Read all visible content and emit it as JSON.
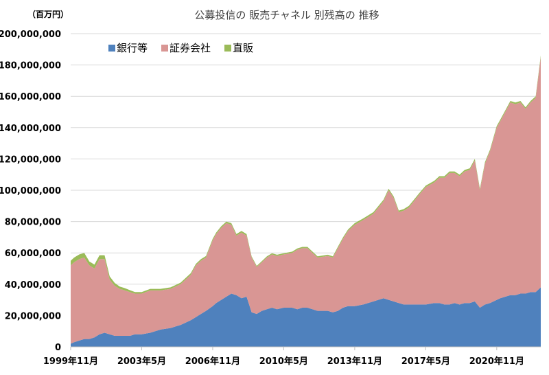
{
  "chart_data": {
    "type": "area",
    "stacked": true,
    "title": "公募投信の 販売チャネル 別残高の 推移",
    "unit_label": "（百万円）",
    "xlabel": "",
    "ylabel": "",
    "ylim": [
      0,
      200000000
    ],
    "y_ticks": [
      "0",
      "20,000,000",
      "40,000,000",
      "60,000,000",
      "80,000,000",
      "100,000,000",
      "120,000,000",
      "140,000,000",
      "160,000,000",
      "180,000,000",
      "200,000,000"
    ],
    "x_tick_labels": [
      "1999年11月",
      "2003年5月",
      "2006年11月",
      "2010年5月",
      "2013年11月",
      "2017年5月",
      "2020年11月"
    ],
    "x_tick_values": [
      1999.83,
      2003.33,
      2006.83,
      2010.33,
      2013.83,
      2017.33,
      2020.83
    ],
    "xlim": [
      1999.83,
      2023.0
    ],
    "grid": "horizontal",
    "legend_position": "top-left",
    "x": [
      1999.83,
      2000.0,
      2000.25,
      2000.5,
      2000.75,
      2001.0,
      2001.25,
      2001.5,
      2001.75,
      2002.0,
      2002.25,
      2002.5,
      2002.75,
      2003.0,
      2003.33,
      2003.75,
      2004.25,
      2004.75,
      2005.25,
      2005.75,
      2006.0,
      2006.25,
      2006.5,
      2006.83,
      2007.0,
      2007.25,
      2007.5,
      2007.75,
      2008.0,
      2008.25,
      2008.5,
      2008.75,
      2009.0,
      2009.25,
      2009.5,
      2009.75,
      2010.0,
      2010.33,
      2010.75,
      2011.0,
      2011.25,
      2011.5,
      2011.75,
      2012.0,
      2012.5,
      2012.75,
      2013.0,
      2013.25,
      2013.5,
      2013.83,
      2014.25,
      2014.75,
      2015.25,
      2015.5,
      2015.75,
      2016.0,
      2016.25,
      2016.5,
      2016.75,
      2017.0,
      2017.33,
      2017.75,
      2018.0,
      2018.25,
      2018.5,
      2018.75,
      2019.0,
      2019.25,
      2019.5,
      2019.75,
      2020.0,
      2020.25,
      2020.5,
      2020.83,
      2021.0,
      2021.25,
      2021.5,
      2021.75,
      2022.0,
      2022.25,
      2022.5,
      2022.75,
      2023.0
    ],
    "series": [
      {
        "name": "銀行等",
        "color": "#4f81bd",
        "values": [
          2000000,
          3000000,
          4000000,
          5000000,
          5000000,
          6000000,
          8000000,
          9000000,
          8000000,
          7000000,
          7000000,
          7000000,
          7000000,
          8000000,
          8000000,
          9000000,
          11000000,
          12000000,
          14000000,
          17000000,
          19000000,
          21000000,
          23000000,
          26000000,
          28000000,
          30000000,
          32000000,
          34000000,
          33000000,
          31000000,
          32000000,
          22000000,
          21000000,
          23000000,
          24000000,
          25000000,
          24000000,
          25000000,
          25000000,
          24000000,
          25000000,
          25000000,
          24000000,
          23000000,
          23000000,
          22000000,
          23000000,
          25000000,
          26000000,
          26000000,
          27000000,
          29000000,
          31000000,
          30000000,
          29000000,
          28000000,
          27000000,
          27000000,
          27000000,
          27000000,
          27000000,
          28000000,
          28000000,
          27000000,
          27000000,
          28000000,
          27000000,
          28000000,
          28000000,
          29000000,
          25000000,
          27000000,
          28000000,
          30000000,
          31000000,
          32000000,
          33000000,
          33000000,
          34000000,
          34000000,
          35000000,
          35000000,
          38000000
        ]
      },
      {
        "name": "証券会社",
        "color": "#d99694",
        "values": [
          50000000,
          51000000,
          52000000,
          52000000,
          47000000,
          44000000,
          48000000,
          47000000,
          35000000,
          32000000,
          30000000,
          29000000,
          28000000,
          26000000,
          26000000,
          27000000,
          25000000,
          25000000,
          26000000,
          29000000,
          33000000,
          34000000,
          34000000,
          42000000,
          44000000,
          46000000,
          47000000,
          44000000,
          38000000,
          42000000,
          39000000,
          35000000,
          30000000,
          31000000,
          33000000,
          34000000,
          34000000,
          34000000,
          35000000,
          38000000,
          38000000,
          38000000,
          36000000,
          34000000,
          35000000,
          35000000,
          40000000,
          44000000,
          48000000,
          52000000,
          54000000,
          56000000,
          62000000,
          70000000,
          66000000,
          58000000,
          60000000,
          62000000,
          66000000,
          70000000,
          75000000,
          77000000,
          80000000,
          81000000,
          84000000,
          83000000,
          82000000,
          84000000,
          85000000,
          90000000,
          75000000,
          90000000,
          97000000,
          110000000,
          113000000,
          118000000,
          123000000,
          122000000,
          122000000,
          118000000,
          121000000,
          124000000,
          147000000
        ]
      },
      {
        "name": "直販",
        "color": "#9bbb59",
        "values": [
          3000000,
          3000000,
          3000000,
          3000000,
          2500000,
          2500000,
          2500000,
          2500000,
          2000000,
          1800000,
          1500000,
          1500000,
          1200000,
          1000000,
          1000000,
          1000000,
          1000000,
          1000000,
          1000000,
          1000000,
          1000000,
          1000000,
          1000000,
          1000000,
          1000000,
          1000000,
          1000000,
          1000000,
          1000000,
          1000000,
          1000000,
          700000,
          700000,
          700000,
          800000,
          800000,
          800000,
          800000,
          800000,
          800000,
          800000,
          800000,
          800000,
          800000,
          800000,
          800000,
          900000,
          900000,
          900000,
          1000000,
          1000000,
          1000000,
          1000000,
          1000000,
          1000000,
          1000000,
          1000000,
          1000000,
          1000000,
          1000000,
          1000000,
          1000000,
          1000000,
          1000000,
          1000000,
          1000000,
          1000000,
          1000000,
          1000000,
          1000000,
          1000000,
          1000000,
          1000000,
          1000000,
          1000000,
          1000000,
          1000000,
          1000000,
          1000000,
          1000000,
          1000000,
          1000000,
          1000000
        ]
      }
    ]
  }
}
